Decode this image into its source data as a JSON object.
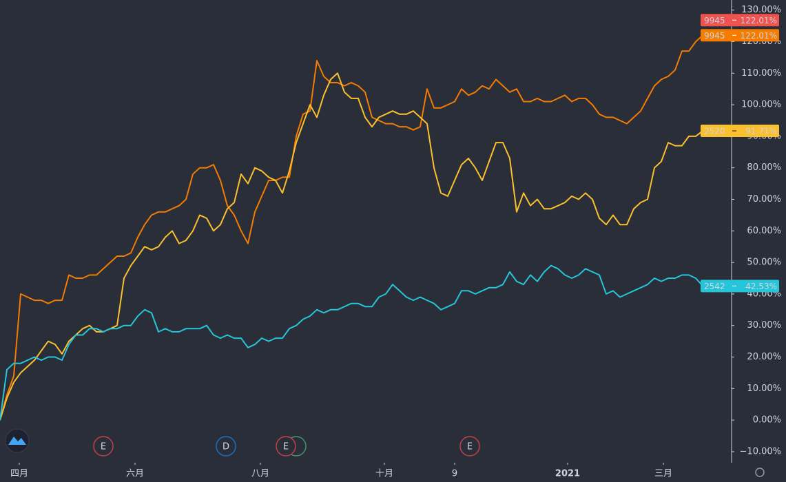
{
  "chart_data": {
    "type": "line",
    "x": [
      0,
      1,
      2,
      3,
      4,
      5,
      6,
      7,
      8,
      9,
      10,
      11,
      12,
      13,
      14,
      15,
      16,
      17,
      18,
      19,
      20,
      21,
      22,
      23,
      24,
      25,
      26,
      27,
      28,
      29,
      30,
      31,
      32,
      33,
      34,
      35,
      36,
      37,
      38,
      39,
      40,
      41,
      42,
      43,
      44,
      45,
      46,
      47,
      48,
      49,
      50,
      51,
      52,
      53,
      54,
      55,
      56,
      57,
      58,
      59,
      60,
      61,
      62,
      63,
      64,
      65,
      66,
      67,
      68,
      69,
      70,
      71,
      72,
      73,
      74,
      75,
      76,
      77,
      78,
      79,
      80,
      81,
      82,
      83,
      84,
      85,
      86,
      87,
      88,
      89,
      90,
      91,
      92,
      93,
      94,
      95,
      96,
      97,
      98,
      99,
      100,
      101,
      102
    ],
    "xlim": [
      0,
      106.1
    ],
    "xticks": [
      {
        "value": 2.8,
        "label": "四月"
      },
      {
        "value": 19.6,
        "label": "六月"
      },
      {
        "value": 37.8,
        "label": "八月"
      },
      {
        "value": 55.8,
        "label": "十月"
      },
      {
        "value": 66,
        "label": "9"
      },
      {
        "value": 82.4,
        "label": "2021"
      },
      {
        "value": 96.3,
        "label": "三月"
      }
    ],
    "ylim": [
      -13.5,
      133.2
    ],
    "yticks": [
      {
        "value": -10,
        "label": "−10.00%"
      },
      {
        "value": 0,
        "label": "0.00%"
      },
      {
        "value": 10,
        "label": "10.00%"
      },
      {
        "value": 20,
        "label": "20.00%"
      },
      {
        "value": 30,
        "label": "30.00%"
      },
      {
        "value": 40,
        "label": "40.00%"
      },
      {
        "value": 50,
        "label": "50.00%"
      },
      {
        "value": 60,
        "label": "60.00%"
      },
      {
        "value": 70,
        "label": "70.00%"
      },
      {
        "value": 80,
        "label": "80.00%"
      },
      {
        "value": 90,
        "label": "90.00%"
      },
      {
        "value": 100,
        "label": "100.00%"
      },
      {
        "value": 110,
        "label": "110.00%"
      },
      {
        "value": 120,
        "label": "120.00%"
      },
      {
        "value": 130,
        "label": "130.00%"
      }
    ],
    "series": [
      {
        "name": "9945",
        "color": "#f57c00",
        "last": {
          "value": 122.01,
          "label": "122.01%"
        },
        "values": [
          0,
          8,
          14,
          40,
          39,
          38,
          38,
          37,
          38,
          38,
          46,
          45,
          45,
          46,
          46,
          48,
          50,
          52,
          52,
          53,
          58,
          62,
          65,
          66,
          66,
          67,
          68,
          70,
          78,
          80,
          80,
          81,
          76,
          68,
          65,
          60,
          56,
          66,
          71,
          76,
          76,
          77,
          77,
          90,
          97,
          98,
          114,
          109,
          107,
          107,
          106,
          107,
          106,
          104,
          96,
          95,
          94,
          94,
          93,
          93,
          92,
          93,
          105,
          99,
          99,
          100,
          101,
          105,
          103,
          104,
          106,
          105,
          108,
          106,
          104,
          105,
          101,
          101,
          102,
          101,
          101,
          102,
          103,
          101,
          102,
          102,
          100,
          97,
          96,
          96,
          95,
          94,
          96,
          98,
          102,
          106,
          108,
          109,
          111,
          117,
          117,
          120,
          122.01
        ]
      },
      {
        "name": "2520",
        "color": "#fbc02d",
        "last": {
          "value": 91.71,
          "label": "91.71%"
        },
        "values": [
          0,
          7,
          12,
          15,
          17,
          19,
          22,
          25,
          24,
          21,
          25,
          27,
          29,
          30,
          28,
          28,
          29,
          30,
          45,
          49,
          52,
          55,
          54,
          55,
          58,
          60,
          56,
          57,
          60,
          65,
          64,
          60,
          62,
          67,
          69,
          78,
          75,
          80,
          79,
          77,
          76,
          72,
          79,
          88,
          94,
          100,
          96,
          103,
          108,
          110,
          104,
          102,
          102,
          96,
          93,
          96,
          97,
          98,
          97,
          97,
          98,
          96,
          94,
          80,
          72,
          71,
          76,
          81,
          83,
          80,
          76,
          82,
          88,
          88,
          83,
          66,
          72,
          68,
          70,
          67,
          67,
          68,
          69,
          71,
          70,
          72,
          70,
          64,
          62,
          65,
          62,
          62,
          67,
          69,
          70,
          80,
          82,
          88,
          87,
          87,
          90,
          90,
          91.71
        ]
      },
      {
        "name": "2542",
        "color": "#26c6da",
        "last": {
          "value": 42.53,
          "label": "42.53%"
        },
        "values": [
          0,
          16,
          18,
          18,
          19,
          20,
          19,
          20,
          20,
          19,
          24,
          27,
          27,
          29,
          29,
          28,
          29,
          29,
          30,
          30,
          33,
          35,
          34,
          28,
          29,
          28,
          28,
          29,
          29,
          29,
          30,
          27,
          26,
          27,
          26,
          26,
          23,
          24,
          26,
          25,
          26,
          26,
          29,
          30,
          32,
          33,
          35,
          34,
          35,
          35,
          36,
          37,
          37,
          36,
          36,
          39,
          40,
          43,
          41,
          39,
          38,
          39,
          38,
          37,
          35,
          36,
          37,
          41,
          41,
          40,
          41,
          42,
          42,
          43,
          47,
          44,
          43,
          46,
          44,
          47,
          49,
          48,
          46,
          45,
          46,
          48,
          47,
          46,
          40,
          41,
          39,
          40,
          41,
          42,
          43,
          45,
          44,
          45,
          45,
          46,
          46,
          45,
          42.53
        ]
      }
    ],
    "extra_tag": {
      "name": "9945",
      "color": "#ef5350",
      "label": "122.01%"
    },
    "events": [
      {
        "label": "E",
        "x": 15.0,
        "color": "#c2404a"
      },
      {
        "label": "D",
        "x": 32.8,
        "color": "#1e6fc0"
      },
      {
        "label": "E",
        "x": 41.5,
        "color": "#c2404a"
      },
      {
        "label": "E",
        "x": 68.2,
        "color": "#c2404a"
      }
    ]
  }
}
